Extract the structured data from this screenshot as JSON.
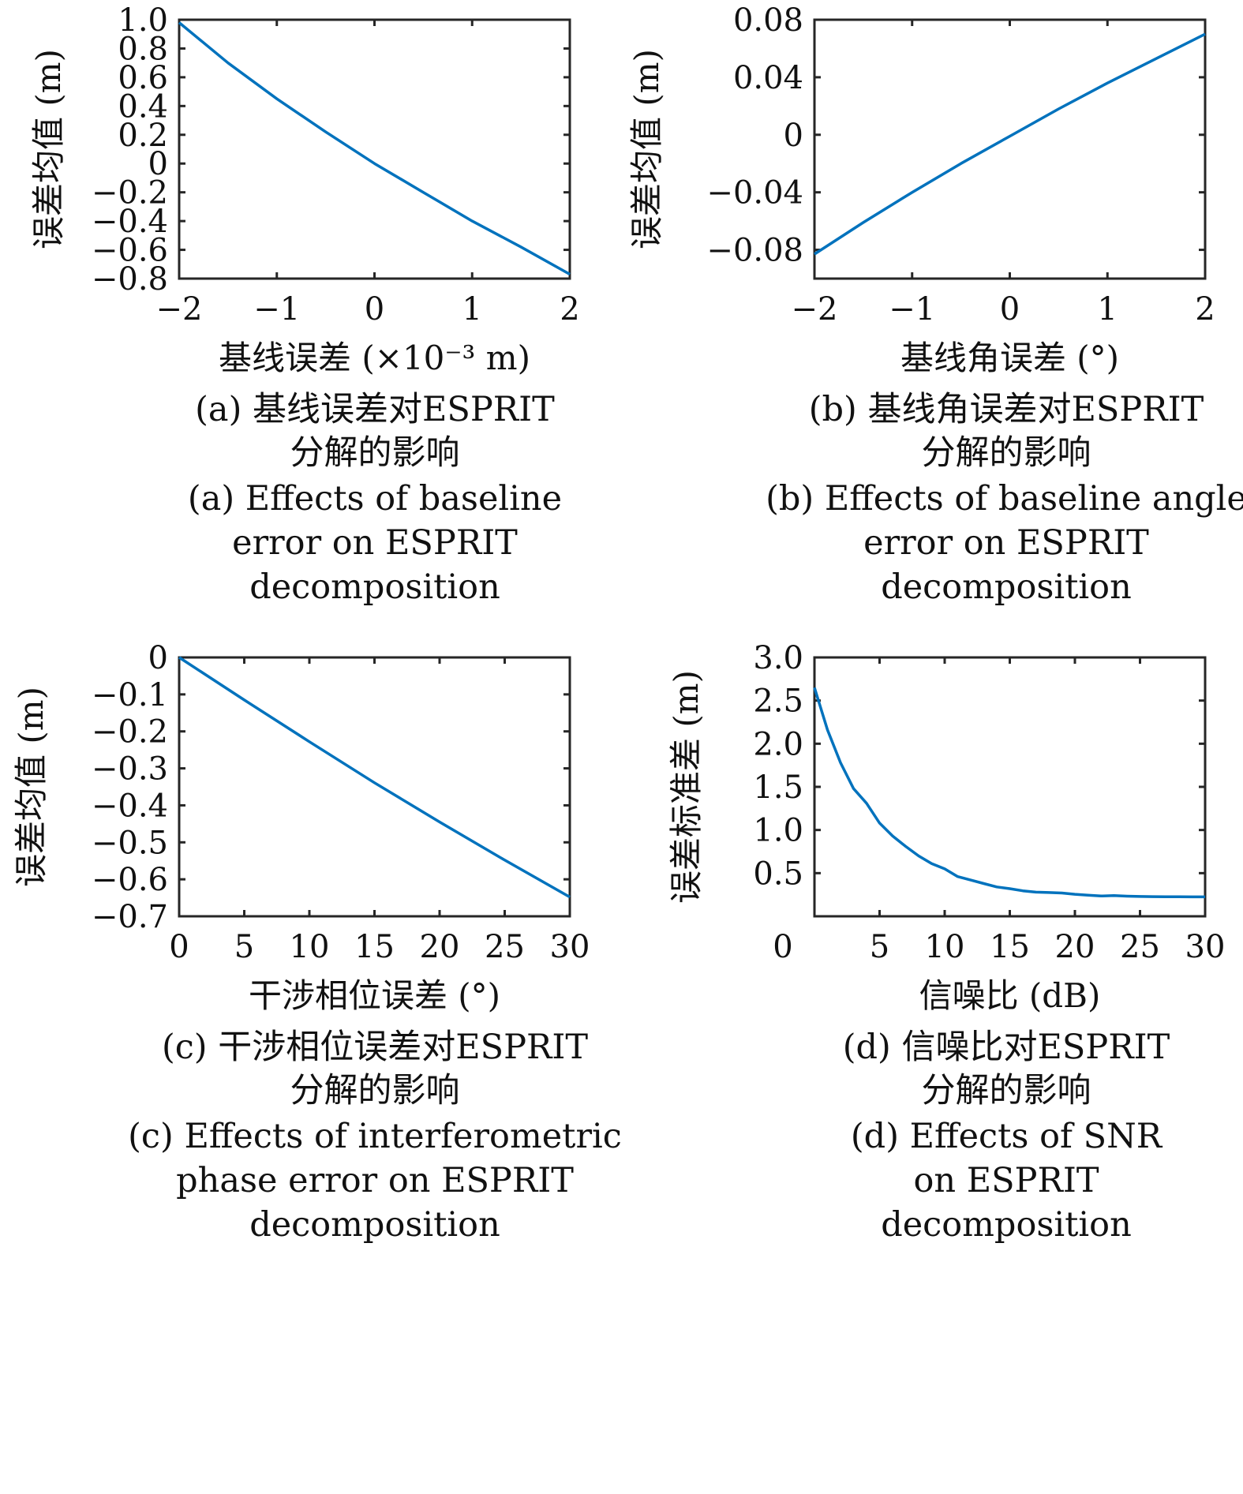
{
  "chart_data": [
    {
      "type": "line",
      "panel": "a",
      "xlabel": "基线误差 (×10⁻³ m)",
      "ylabel": "误差均值 (m)",
      "xlim": [
        -2,
        2
      ],
      "ylim": [
        -0.8,
        1.0
      ],
      "xticks": [
        -2,
        -1,
        0,
        1,
        2
      ],
      "xtick_labels": [
        "−2",
        "−1",
        "0",
        "1",
        "2"
      ],
      "yticks": [
        1.0,
        0.8,
        0.6,
        0.4,
        0.2,
        0,
        -0.2,
        -0.4,
        -0.6,
        -0.8
      ],
      "ytick_labels": [
        "1.0",
        "0.8",
        "0.6",
        "0.4",
        "0.2",
        "0",
        "−0.2",
        "−0.4",
        "−0.6",
        "−0.8"
      ],
      "grid": false,
      "x": [
        -2,
        -1.5,
        -1,
        -0.5,
        0,
        0.5,
        1,
        1.5,
        2
      ],
      "y": [
        0.98,
        0.7,
        0.45,
        0.22,
        0.0,
        -0.2,
        -0.4,
        -0.58,
        -0.77
      ],
      "caption_cn": [
        "(a) 基线误差对ESPRIT",
        "分解的影响"
      ],
      "caption_en": [
        "(a) Effects of baseline",
        "error on ESPRIT",
        "decomposition"
      ]
    },
    {
      "type": "line",
      "panel": "b",
      "xlabel": "基线角误差 (°)",
      "ylabel": "误差均值 (m)",
      "xlim": [
        -2,
        2
      ],
      "ylim": [
        -0.1,
        0.08
      ],
      "xticks": [
        -2,
        -1,
        0,
        1,
        2
      ],
      "xtick_labels": [
        "−2",
        "−1",
        "0",
        "1",
        "2"
      ],
      "yticks": [
        0.08,
        0.04,
        0,
        -0.04,
        -0.08
      ],
      "ytick_labels": [
        "0.08",
        "0.04",
        "0",
        "−0.04",
        "−0.08"
      ],
      "grid": false,
      "x": [
        -2,
        -1.5,
        -1,
        -0.5,
        0,
        0.5,
        1,
        1.5,
        2
      ],
      "y": [
        -0.083,
        -0.061,
        -0.04,
        -0.02,
        -0.001,
        0.018,
        0.036,
        0.053,
        0.07
      ],
      "caption_cn": [
        "(b) 基线角误差对ESPRIT",
        "分解的影响"
      ],
      "caption_en": [
        "(b) Effects of baseline angle",
        "error on ESPRIT",
        "decomposition"
      ]
    },
    {
      "type": "line",
      "panel": "c",
      "xlabel": "干涉相位误差 (°)",
      "ylabel": "误差均值 (m)",
      "xlim": [
        0,
        30
      ],
      "ylim": [
        -0.7,
        0
      ],
      "xticks": [
        0,
        5,
        10,
        15,
        20,
        25,
        30
      ],
      "xtick_labels": [
        "0",
        "5",
        "10",
        "15",
        "20",
        "25",
        "30"
      ],
      "yticks": [
        0,
        -0.1,
        -0.2,
        -0.3,
        -0.4,
        -0.5,
        -0.6,
        -0.7
      ],
      "ytick_labels": [
        "0",
        "−0.1",
        "−0.2",
        "−0.3",
        "−0.4",
        "−0.5",
        "−0.6",
        "−0.7"
      ],
      "grid": false,
      "x": [
        0,
        5,
        10,
        15,
        20,
        25,
        30
      ],
      "y": [
        0,
        -0.115,
        -0.228,
        -0.339,
        -0.445,
        -0.548,
        -0.648
      ],
      "caption_cn": [
        "(c) 干涉相位误差对ESPRIT",
        "分解的影响"
      ],
      "caption_en": [
        "(c) Effects of interferometric",
        "phase error on ESPRIT",
        "decomposition"
      ]
    },
    {
      "type": "line",
      "panel": "d",
      "xlabel": "信噪比 (dB)",
      "ylabel": "误差标准差 (m)",
      "xlim": [
        0,
        30
      ],
      "ylim": [
        0,
        3.0
      ],
      "xticks": [
        0,
        5,
        10,
        15,
        20,
        25,
        30
      ],
      "xtick_labels": [
        "0",
        "5",
        "10",
        "15",
        "20",
        "25",
        "30"
      ],
      "yticks": [
        3.0,
        2.5,
        2.0,
        1.5,
        1.0,
        0.5
      ],
      "ytick_labels": [
        "3.0",
        "2.5",
        "2.0",
        "1.5",
        "1.0",
        "0.5"
      ],
      "grid": false,
      "x": [
        0,
        1,
        2,
        3,
        4,
        5,
        6,
        7,
        8,
        9,
        10,
        11,
        12,
        13,
        14,
        15,
        16,
        17,
        18,
        19,
        20,
        21,
        22,
        23,
        24,
        25,
        26,
        27,
        28,
        29,
        30
      ],
      "y": [
        2.65,
        2.16,
        1.78,
        1.48,
        1.31,
        1.08,
        0.93,
        0.81,
        0.7,
        0.61,
        0.55,
        0.46,
        0.42,
        0.38,
        0.34,
        0.32,
        0.295,
        0.28,
        0.275,
        0.27,
        0.255,
        0.245,
        0.235,
        0.24,
        0.233,
        0.23,
        0.228,
        0.227,
        0.226,
        0.225,
        0.225
      ],
      "caption_cn": [
        "(d) 信噪比对ESPRIT",
        "分解的影响"
      ],
      "caption_en": [
        "(d) Effects of SNR",
        "on ESPRIT",
        "decomposition"
      ]
    }
  ],
  "colors": {
    "line": "#0072BD",
    "axes": "#262626"
  }
}
